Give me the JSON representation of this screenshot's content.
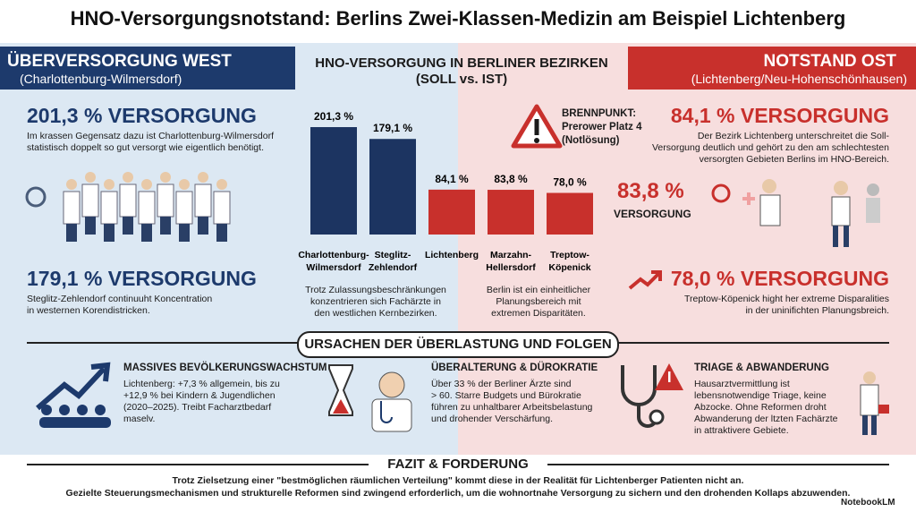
{
  "header": {
    "title": "HNO-Versorgungsnotstand: Berlins Zwei-Klassen-Medizin am Beispiel Lichtenberg"
  },
  "west": {
    "heading": "ÜBERVERSORGUNG WEST",
    "subheading": "(Charlottenburg-Wilmersdorf)",
    "stat1": {
      "title": "201,3 % VERSORGUNG",
      "lines": [
        "Im krassen Gegensatz dazu ist Charlottenburg-Wilmersdorf",
        "statistisch doppelt so gut versorgt wie eigentlich benötigt."
      ]
    },
    "stat2": {
      "title": "179,1 % VERSORGUNG",
      "lines": [
        "Steglitz-Zehlendorf continuuht Koncentration",
        "in westernen Korendistricken."
      ]
    }
  },
  "center": {
    "heading": "HNO-VERSORGUNG IN BERLINER BEZIRKEN",
    "subheading": "(SOLL vs. IST)",
    "note_left": [
      "Trotz Zulassungsbeschränkungen",
      "konzentrieren sich Fachärzte in",
      "den westlichen Kernbezirken."
    ],
    "note_right": [
      "Berlin ist ein einheitlicher",
      "Planungsbereich mit",
      "extremen Disparitäten."
    ]
  },
  "chart": {
    "type": "bar",
    "categories": [
      [
        "Charlottenburg-",
        "Wilmersdorf"
      ],
      [
        "Steglitz-",
        "Zehlendorf"
      ],
      [
        "Lichtenberg"
      ],
      [
        "Marzahn-",
        "Hellersdorf"
      ],
      [
        "Treptow-",
        "Köpenick"
      ]
    ],
    "values": [
      201.3,
      179.1,
      84.1,
      83.8,
      78.0
    ],
    "value_labels": [
      "201,3 %",
      "179,1 %",
      "84,1 %",
      "83,8 %",
      "78,0 %"
    ],
    "colors": [
      "#1c3461",
      "#1c3461",
      "#c8302c",
      "#c8302c",
      "#c8302c"
    ]
  },
  "east": {
    "heading": "NOTSTAND OST",
    "subheading": "(Lichtenberg/Neu-Hohenschönhausen)",
    "hotspot": [
      "BRENNPUNKT:",
      "Prerower Platz 4",
      "(Notlösung)"
    ],
    "stat1": {
      "title": "84,1 % VERSORGUNG",
      "lines": [
        "Der Bezirk Lichtenberg unterschreitet die Soll-",
        "Versorgung deutlich und gehört zu den am schlechtesten",
        "versorgten Gebieten Berlins im HNO-Bereich."
      ]
    },
    "stat2": {
      "value": "83,8 %",
      "label": "VERSORGUNG"
    },
    "stat3": {
      "title": "78,0 % VERSORGUNG",
      "lines": [
        "Treptow-Köpenick hight her extreme Disparalities",
        "in der uninifichten Planungsbreich."
      ]
    }
  },
  "causes": {
    "heading": "URSACHEN DER ÜBERLASTUNG UND FOLGEN",
    "items": [
      {
        "title": "MASSIVES BEVÖLKERUNGSWACHSTUM",
        "lines": [
          "Lichtenberg: +7,3 % allgemein, bis zu",
          "+12,9 % bei Kindern & Jugendlichen",
          "(2020–2025). Treibt Facharztbedarf",
          "maselv."
        ]
      },
      {
        "title": "ÜBERALTERUNG & DÜROKRATIE",
        "lines": [
          "Über 33 % der Berliner Ärzte sind",
          "> 60. Starre Budgets und Bürokratie",
          "führen zu unhaltbarer Arbeitsbelastung",
          "und drohender Verschärfung."
        ]
      },
      {
        "title": "TRIAGE & ABWANDERUNG",
        "lines": [
          "Hausarztvermittlung ist",
          "lebensnotwendige Triage, keine",
          "Abzocke. Ohne Reformen droht",
          "Abwanderung der ltzten Fachärzte",
          "in attraktivere Gebiete."
        ]
      }
    ]
  },
  "conclusion": {
    "heading": "FAZIT & FORDERUNG",
    "lines": [
      "Trotz Zielsetzung einer \"bestmöglichen räumlichen Verteilung\" kommt diese in der Realität für Lichtenberger Patienten nicht an.",
      "Gezielte Steuerungsmechanismen und strukturelle Reformen sind zwingend erforderlich, um die wohnortnahe Versorgung zu sichern und den drohenden Kollaps abzuwenden."
    ]
  },
  "footer": {
    "brand": "NotebookLM"
  }
}
